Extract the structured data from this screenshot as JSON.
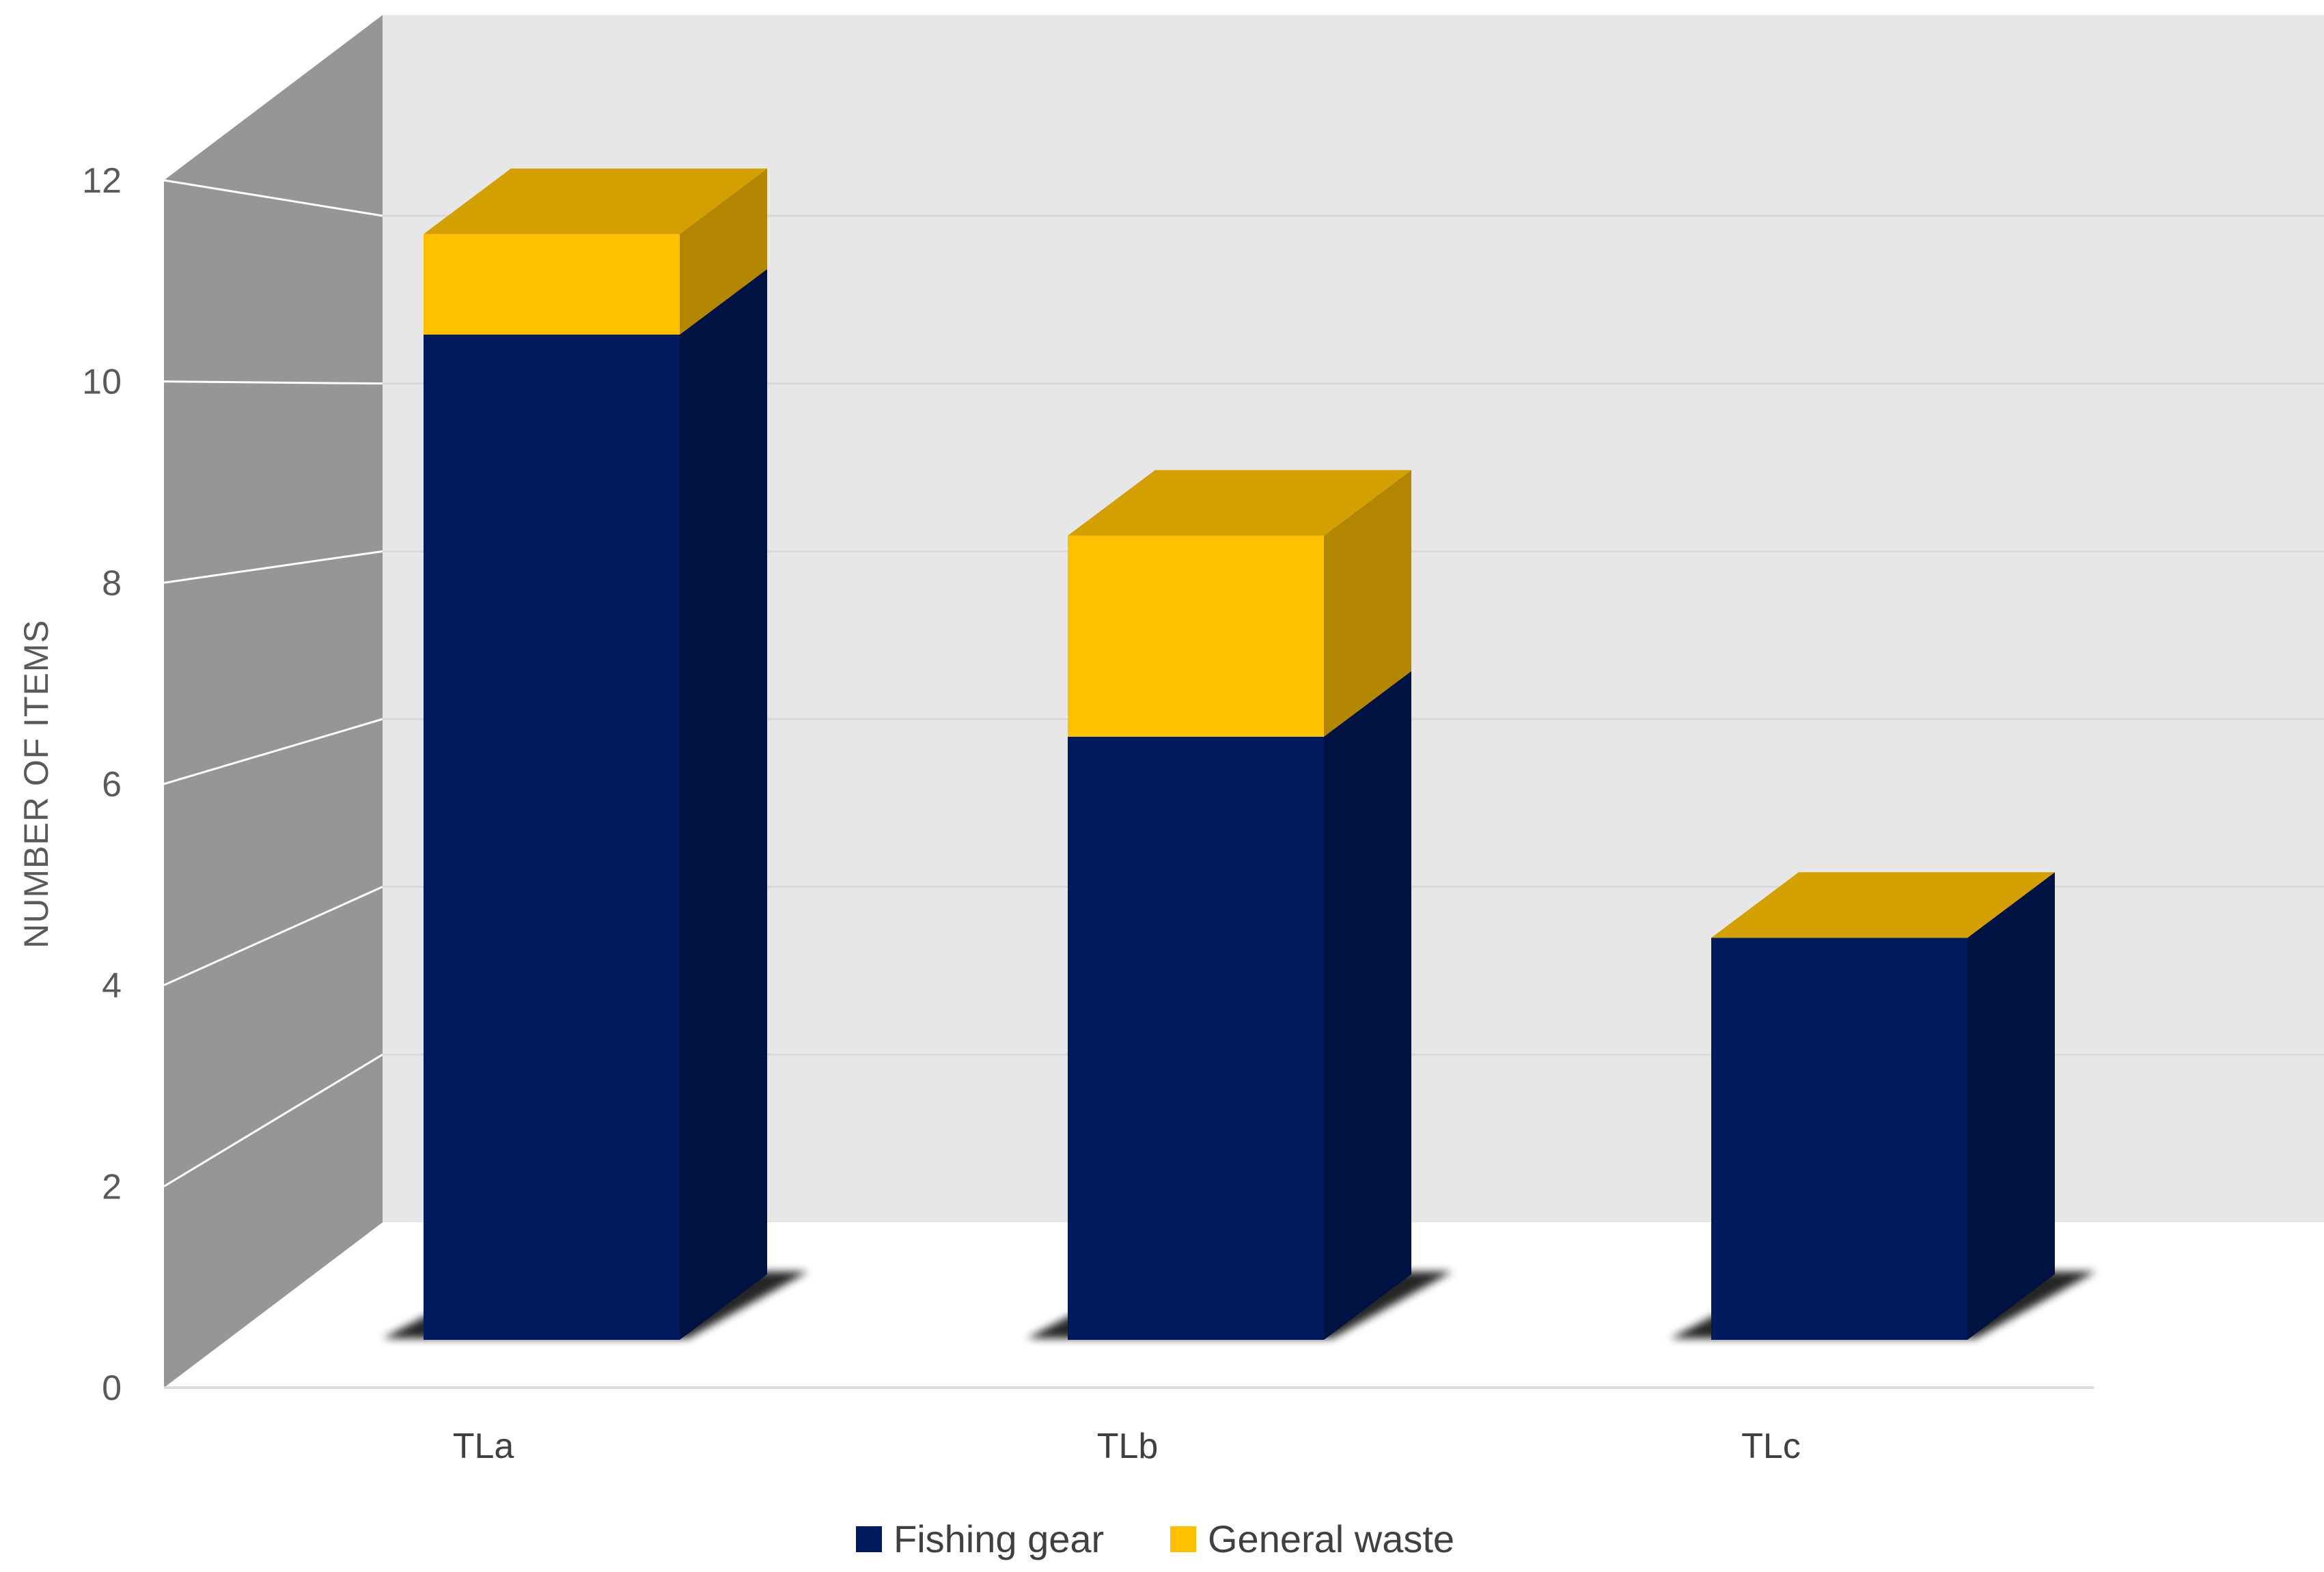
{
  "chart_data": {
    "type": "bar",
    "stacked": true,
    "three_d": true,
    "title": "",
    "xlabel": "",
    "ylabel": "NUMBER OF ITEMS",
    "ylim": [
      0,
      12
    ],
    "yticks": [
      "0",
      "2",
      "4",
      "6",
      "8",
      "10",
      "12"
    ],
    "grid": true,
    "legend_position": "bottom",
    "categories": [
      "TLa",
      "TLb",
      "TLc"
    ],
    "series": [
      {
        "name": "Fishing gear",
        "values": [
          10,
          6,
          4
        ],
        "color": "#001A5E"
      },
      {
        "name": "General waste",
        "values": [
          1,
          2,
          0
        ],
        "color": "#FFC000"
      }
    ]
  }
}
